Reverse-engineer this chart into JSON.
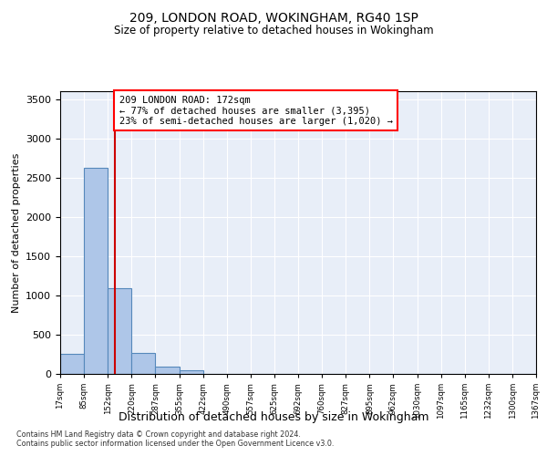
{
  "title1": "209, LONDON ROAD, WOKINGHAM, RG40 1SP",
  "title2": "Size of property relative to detached houses in Wokingham",
  "xlabel": "Distribution of detached houses by size in Wokingham",
  "ylabel": "Number of detached properties",
  "annotation_line1": "209 LONDON ROAD: 172sqm",
  "annotation_line2": "← 77% of detached houses are smaller (3,395)",
  "annotation_line3": "23% of semi-detached houses are larger (1,020) →",
  "property_size": 172,
  "bar_edges": [
    17,
    85,
    152,
    220,
    287,
    355,
    422,
    490,
    557,
    625,
    692,
    760,
    827,
    895,
    962,
    1030,
    1097,
    1165,
    1232,
    1300,
    1367
  ],
  "bar_heights": [
    250,
    2620,
    1090,
    265,
    95,
    45,
    0,
    0,
    0,
    0,
    0,
    0,
    0,
    0,
    0,
    0,
    0,
    0,
    0,
    0
  ],
  "bar_color": "#aec6e8",
  "bar_edge_color": "#5588bb",
  "vline_color": "#cc0000",
  "vline_x": 172,
  "ylim": [
    0,
    3600
  ],
  "yticks": [
    0,
    500,
    1000,
    1500,
    2000,
    2500,
    3000,
    3500
  ],
  "background_color": "#e8eef8",
  "grid_color": "#ffffff",
  "footnote1": "Contains HM Land Registry data © Crown copyright and database right 2024.",
  "footnote2": "Contains public sector information licensed under the Open Government Licence v3.0."
}
